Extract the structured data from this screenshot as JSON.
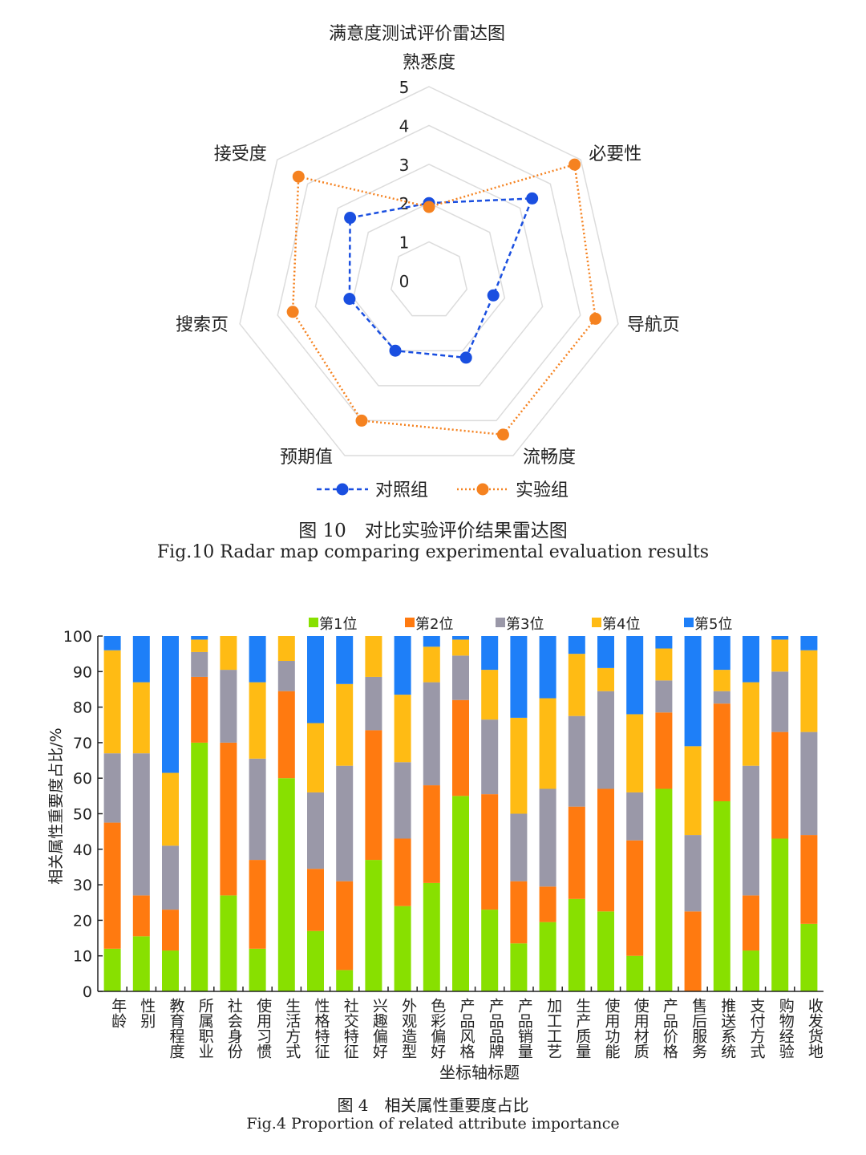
{
  "chart_data": [
    {
      "type": "radar",
      "title": "满意度测试评价雷达图",
      "axes": [
        "熟悉度",
        "必要性",
        "导航页",
        "流畅度",
        "预期值",
        "搜索页",
        "接受度"
      ],
      "range": [
        0,
        5
      ],
      "ticks": [
        "0",
        "1",
        "2",
        "3",
        "4",
        "5"
      ],
      "legend_position": "bottom",
      "series": [
        {
          "name": "对照组",
          "color": "#1a4fe0",
          "style": "dashed",
          "values": [
            2.0,
            3.4,
            1.7,
            2.2,
            2.0,
            2.1,
            2.6
          ]
        },
        {
          "name": "实验组",
          "color": "#f58220",
          "style": "dotted",
          "values": [
            1.9,
            4.8,
            4.4,
            4.4,
            4.0,
            3.6,
            4.3
          ]
        }
      ],
      "caption_cn": "图 10　对比实验评价结果雷达图",
      "caption_en": "Fig.10 Radar map comparing experimental evaluation results"
    },
    {
      "type": "bar",
      "stacked": true,
      "xlabel": "坐标轴标题",
      "ylabel": "相关属性重要度占比/%",
      "ylim": [
        0,
        100
      ],
      "yticks": [
        "0",
        "10",
        "20",
        "30",
        "40",
        "50",
        "60",
        "70",
        "80",
        "90",
        "100"
      ],
      "legend_position": "top",
      "categories": [
        "年龄",
        "性别",
        "教育程度",
        "所属职业",
        "社会身份",
        "使用习惯",
        "生活方式",
        "性格特征",
        "社交特征",
        "兴趣偏好",
        "外观造型",
        "色彩偏好",
        "产品风格",
        "产品品牌",
        "产品销量",
        "加工工艺",
        "生产质量",
        "使用功能",
        "使用材质",
        "产品价格",
        "售后服务",
        "推送系统",
        "支付方式",
        "购物经验",
        "收发货地"
      ],
      "series": [
        {
          "name": "第1位",
          "color": "#88e000",
          "values": [
            12,
            15.5,
            11.5,
            70,
            27,
            12,
            60,
            17,
            6,
            37,
            24,
            30.5,
            55,
            23,
            13.5,
            19.5,
            26,
            22.5,
            10,
            57,
            0,
            53.5,
            11.5,
            43,
            19
          ]
        },
        {
          "name": "第2位",
          "color": "#ff7a10",
          "values": [
            35.5,
            11.5,
            11.5,
            18.5,
            43,
            25,
            24.5,
            17.5,
            25,
            36.5,
            19,
            27.5,
            27,
            32.5,
            17.5,
            10,
            26,
            34.5,
            32.5,
            21.5,
            22.5,
            27.5,
            15.5,
            30,
            25
          ]
        },
        {
          "name": "第3位",
          "color": "#9a98a8",
          "values": [
            19.5,
            40,
            18,
            7,
            20.5,
            28.5,
            8.5,
            21.5,
            32.5,
            15,
            21.5,
            29,
            12.5,
            21,
            19,
            27.5,
            25.5,
            27.5,
            13.5,
            9,
            21.5,
            3.5,
            36.5,
            17,
            29
          ]
        },
        {
          "name": "第4位",
          "color": "#ffbb14",
          "values": [
            29,
            20,
            20.5,
            3.5,
            9.5,
            21.5,
            7,
            19.5,
            23,
            11.5,
            19,
            10,
            4.5,
            14,
            27,
            25.5,
            17.5,
            6.5,
            22,
            9,
            25,
            6,
            23.5,
            9,
            23
          ]
        },
        {
          "name": "第5位",
          "color": "#1e7ff8",
          "values": [
            4,
            13,
            38.5,
            1,
            0,
            13,
            0,
            24.5,
            13.5,
            0,
            16.5,
            3,
            1,
            9.5,
            23,
            17.5,
            5,
            9,
            22,
            3.5,
            31,
            9.5,
            13,
            1,
            4
          ]
        }
      ],
      "caption_cn": "图 4　相关属性重要度占比",
      "caption_en": "Fig.4 Proportion of related attribute importance"
    }
  ]
}
